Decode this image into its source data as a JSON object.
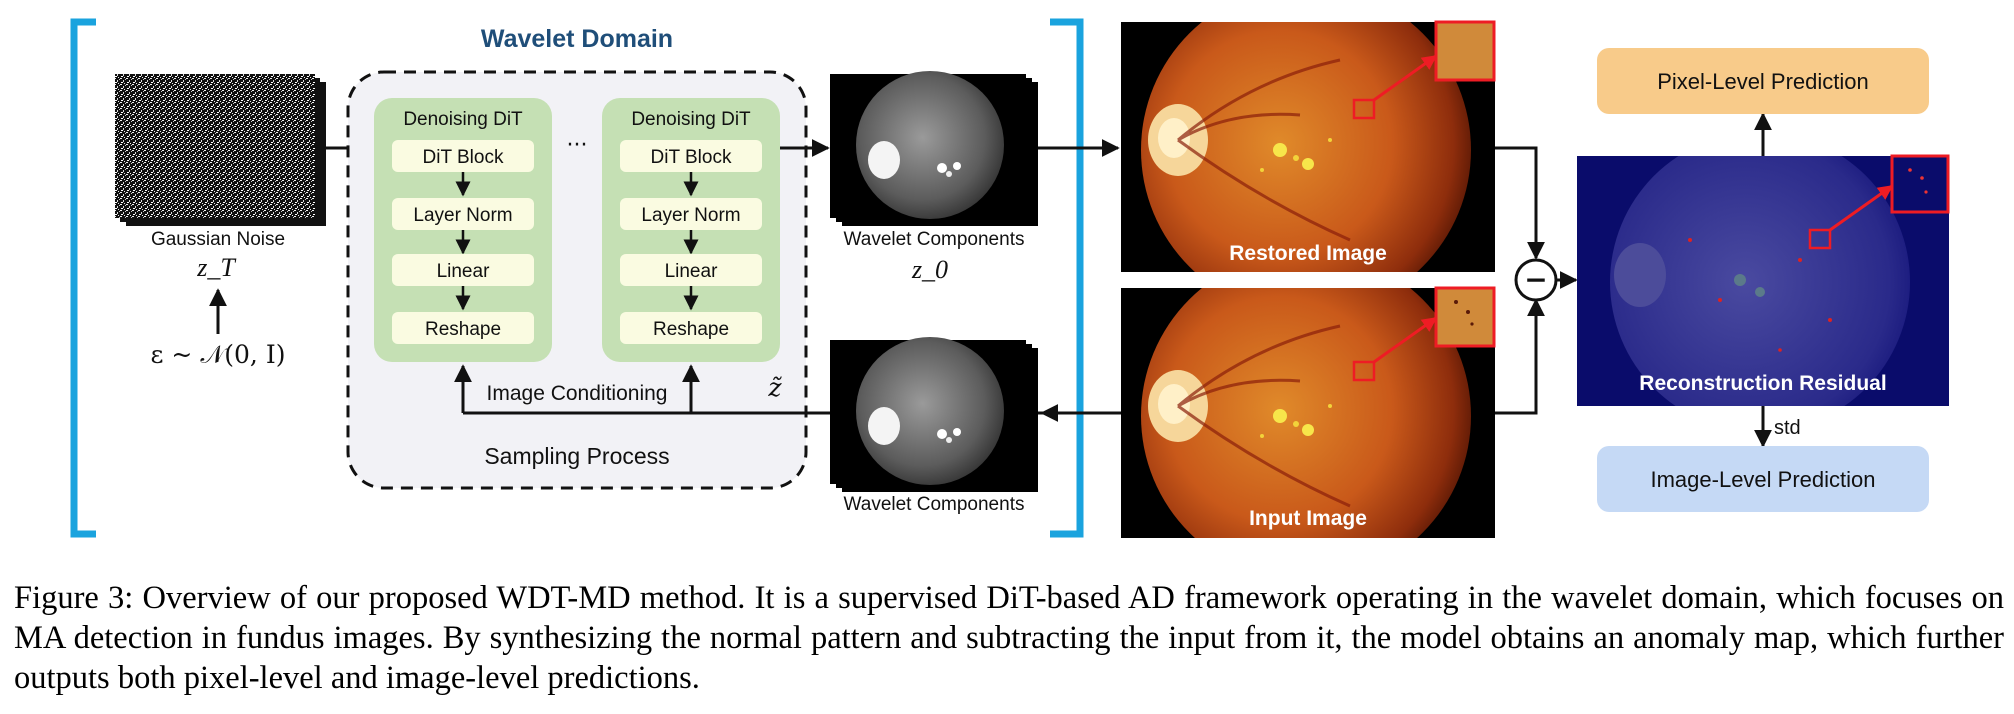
{
  "domain_title": "Wavelet Domain",
  "noise": {
    "label": "Gaussian Noise",
    "z_t": "z_T",
    "epsilon": "ε ~ 𝒩(0, I)"
  },
  "dit_blocks": [
    {
      "title": "Denoising DiT",
      "layers": [
        "DiT Block",
        "Layer Norm",
        "Linear",
        "Reshape"
      ]
    },
    {
      "title": "Denoising DiT",
      "layers": [
        "DiT Block",
        "Layer Norm",
        "Linear",
        "Reshape"
      ]
    }
  ],
  "ellipsis": "···",
  "image_conditioning": "Image Conditioning",
  "z_tilde": "z̃",
  "sampling_process": "Sampling Process",
  "wavelet_top": {
    "label": "Wavelet Components",
    "z0": "z_0"
  },
  "wavelet_bottom": {
    "label": "Wavelet Components"
  },
  "restored_image": "Restored Image",
  "input_image": "Input Image",
  "minus_symbol": "−",
  "pixel_prediction": "Pixel-Level Prediction",
  "residual_label": "Reconstruction Residual",
  "std_label": "std",
  "image_prediction": "Image-Level Prediction",
  "colors": {
    "bracket": "#1aa3de",
    "title": "#1f4e79",
    "dit_green": "#c5e0b4",
    "layer_fill": "#fafbe1",
    "sampling_bg": "#f2f2f6",
    "pixel_pred": "#f8cb8a",
    "image_pred": "#c5d9f5",
    "residual_bg": "#0a0c6b",
    "zoom_red": "#ee1c24"
  },
  "caption": "Figure 3: Overview of our proposed WDT-MD method. It is a supervised DiT-based AD framework operating in the wavelet domain, which focuses on MA detection in fundus images. By synthesizing the normal pattern and subtracting the input from it, the model obtains an anomaly map, which further outputs both pixel-level and image-level predictions."
}
